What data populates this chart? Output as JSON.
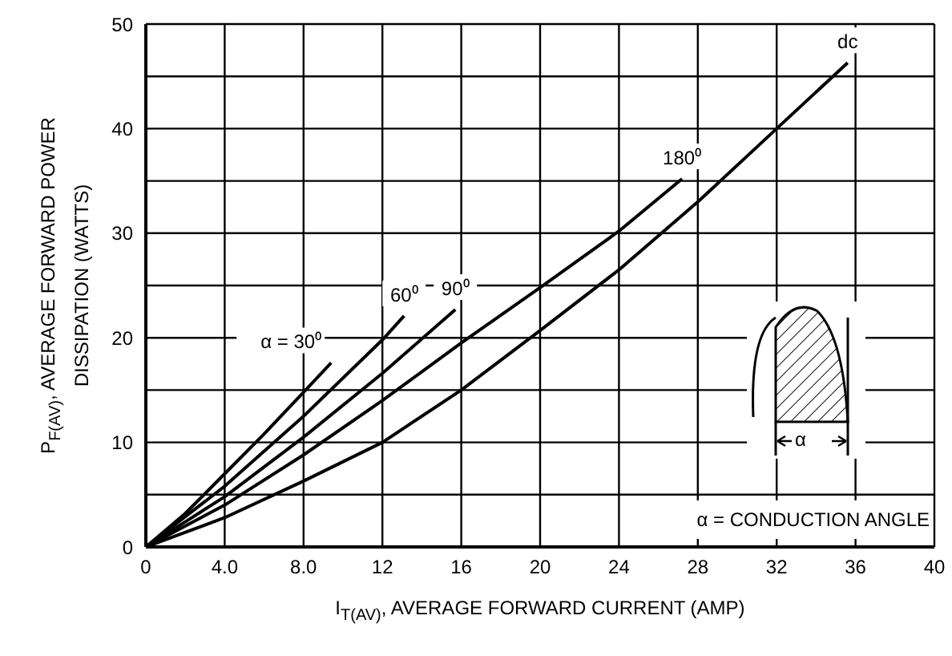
{
  "chart_data": {
    "type": "line",
    "xlabel": "I$_{T(AV)}$, AVERAGE FORWARD CURRENT (AMP)",
    "ylabel": "P$_{F(AV)}$, AVERAGE FORWARD POWER DISSIPATION (WATTS)",
    "xlim": [
      0,
      40
    ],
    "xticks": [
      0,
      {
        "value": 4,
        "label": "4.0"
      },
      {
        "value": 8,
        "label": "8.0"
      },
      12,
      16,
      20,
      24,
      28,
      32,
      36,
      40
    ],
    "ylim": [
      0,
      50
    ],
    "yticks": [
      0,
      {
        "value": 5,
        "label": null
      },
      10,
      {
        "value": 15,
        "label": null
      },
      20,
      {
        "value": 25,
        "label": null
      },
      30,
      {
        "value": 35,
        "label": null
      },
      40,
      {
        "value": 45,
        "label": null
      },
      50
    ],
    "grid": true,
    "marker": "none",
    "line_style": "solid",
    "series": [
      {
        "name": "α = 30⁰",
        "color": "#000000",
        "x": [
          0,
          2,
          4,
          6,
          8,
          9.4
        ],
        "values": [
          0,
          3.2,
          7,
          10.8,
          14.8,
          17.6
        ]
      },
      {
        "name": "60⁰",
        "color": "#000000",
        "x": [
          0,
          4,
          8,
          12,
          13.1
        ],
        "values": [
          0,
          5.8,
          12.5,
          19.8,
          22.1
        ]
      },
      {
        "name": "90⁰",
        "color": "#000000",
        "x": [
          0,
          4,
          8,
          12,
          15.7
        ],
        "values": [
          0,
          4.8,
          10.5,
          16.6,
          22.7
        ]
      },
      {
        "name": "180⁰",
        "color": "#000000",
        "x": [
          0,
          4,
          8,
          12,
          16,
          20,
          24,
          27.2
        ],
        "values": [
          0,
          4,
          8.8,
          14,
          19.5,
          24.8,
          30.2,
          35.2
        ]
      },
      {
        "name": "dc",
        "color": "#000000",
        "x": [
          0,
          4,
          8,
          12,
          16,
          20,
          24,
          28,
          32,
          35.6
        ],
        "values": [
          0,
          2.8,
          6.3,
          10,
          15,
          20.7,
          26.5,
          33,
          40,
          46.3
        ]
      }
    ],
    "annotations": [
      "α = CONDUCTION ANGLE",
      "α"
    ]
  }
}
